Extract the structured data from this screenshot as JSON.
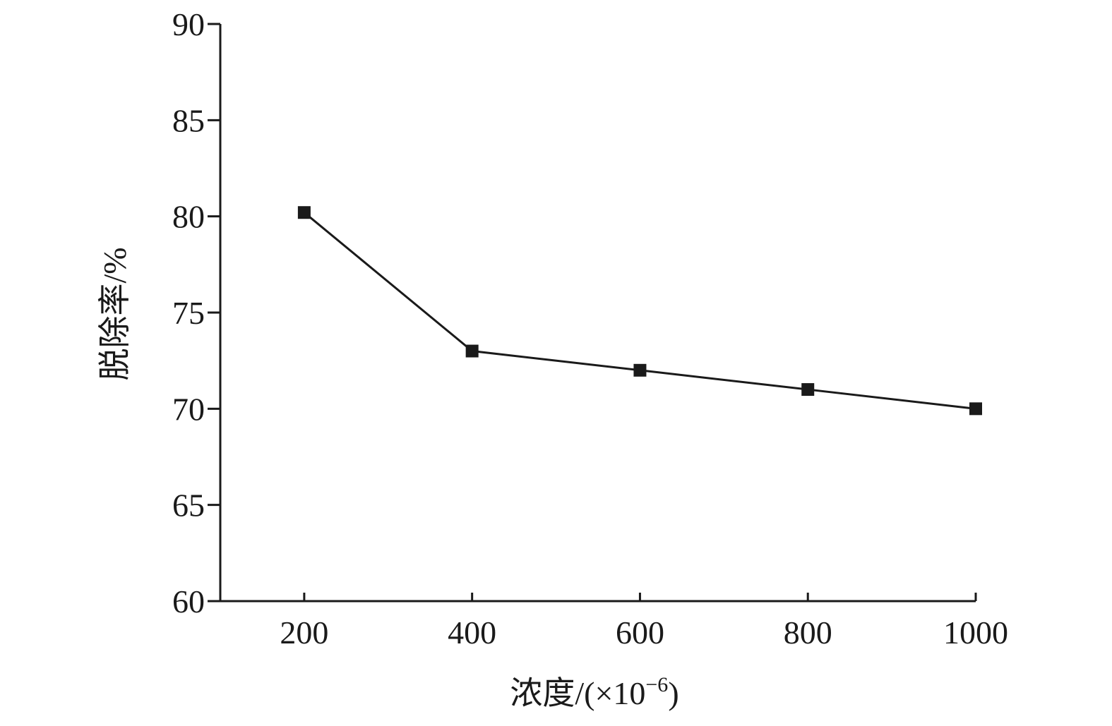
{
  "chart_data": {
    "type": "line",
    "title": "",
    "xlabel": "浓度/(×10",
    "xlabel_sup": "−6",
    "xlabel_close": ")",
    "ylabel": "脱除率/%",
    "x": [
      200,
      400,
      600,
      800,
      1000
    ],
    "series": [
      {
        "values": [
          80.2,
          73.0,
          72.0,
          71.0,
          70.0
        ]
      }
    ],
    "xticks": [
      200,
      400,
      600,
      800,
      1000
    ],
    "yticks": [
      60,
      65,
      70,
      75,
      80,
      85,
      90
    ],
    "xlim": [
      100,
      1000
    ],
    "ylim": [
      60,
      90
    ],
    "grid": false,
    "legend": "none",
    "colors": {
      "line": "#1a1a1a",
      "marker": "#1a1a1a"
    },
    "marker": "square"
  }
}
